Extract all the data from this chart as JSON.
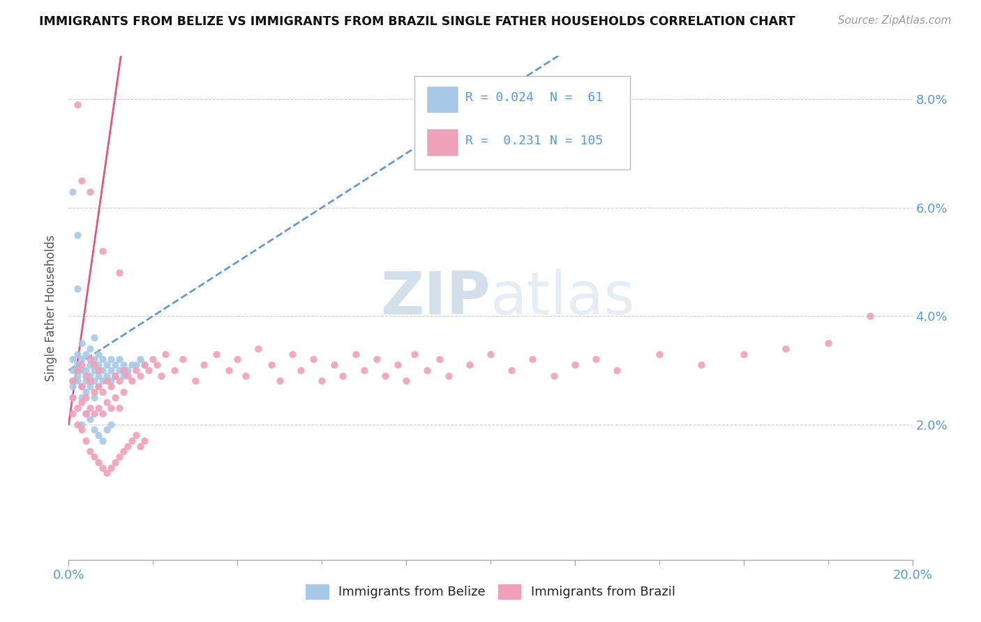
{
  "title": "IMMIGRANTS FROM BELIZE VS IMMIGRANTS FROM BRAZIL SINGLE FATHER HOUSEHOLDS CORRELATION CHART",
  "source": "Source: ZipAtlas.com",
  "ylabel": "Single Father Households",
  "xlim": [
    0.0,
    0.2
  ],
  "ylim": [
    -0.005,
    0.088
  ],
  "yticks": [
    0.02,
    0.04,
    0.06,
    0.08
  ],
  "ytick_labels": [
    "2.0%",
    "4.0%",
    "6.0%",
    "8.0%"
  ],
  "xtick_left_label": "0.0%",
  "xtick_right_label": "20.0%",
  "color_belize": "#a8c8e8",
  "color_brazil": "#f0a0b8",
  "trendline_belize_color": "#6699cc",
  "trendline_brazil_color": "#e05878",
  "grid_color": "#cccccc",
  "axis_label_color": "#5599dd",
  "title_color": "#111111",
  "source_color": "#999999",
  "watermark_color": "#ccd8e8",
  "background": "#ffffff",
  "legend_r1": "R = 0.024",
  "legend_n1": "N =  61",
  "legend_r2": "R =  0.231",
  "legend_n2": "N = 105",
  "belize_label": "Immigrants from Belize",
  "brazil_label": "Immigrants from Brazil",
  "belize_x": [
    0.001,
    0.001,
    0.001,
    0.001,
    0.001,
    0.002,
    0.002,
    0.002,
    0.002,
    0.003,
    0.003,
    0.003,
    0.003,
    0.003,
    0.004,
    0.004,
    0.004,
    0.004,
    0.005,
    0.005,
    0.005,
    0.005,
    0.006,
    0.006,
    0.006,
    0.006,
    0.006,
    0.007,
    0.007,
    0.007,
    0.007,
    0.008,
    0.008,
    0.008,
    0.009,
    0.009,
    0.01,
    0.01,
    0.01,
    0.011,
    0.011,
    0.012,
    0.012,
    0.013,
    0.013,
    0.014,
    0.015,
    0.016,
    0.017,
    0.018,
    0.001,
    0.002,
    0.003,
    0.004,
    0.005,
    0.006,
    0.007,
    0.008,
    0.009,
    0.01,
    0.002
  ],
  "belize_y": [
    0.03,
    0.027,
    0.025,
    0.028,
    0.032,
    0.031,
    0.028,
    0.033,
    0.029,
    0.03,
    0.027,
    0.032,
    0.025,
    0.035,
    0.03,
    0.028,
    0.033,
    0.026,
    0.031,
    0.029,
    0.034,
    0.027,
    0.03,
    0.028,
    0.032,
    0.025,
    0.036,
    0.031,
    0.029,
    0.033,
    0.027,
    0.03,
    0.032,
    0.028,
    0.031,
    0.029,
    0.03,
    0.032,
    0.028,
    0.031,
    0.029,
    0.03,
    0.032,
    0.031,
    0.029,
    0.03,
    0.031,
    0.031,
    0.032,
    0.031,
    0.063,
    0.045,
    0.02,
    0.022,
    0.021,
    0.019,
    0.018,
    0.017,
    0.019,
    0.02,
    0.055
  ],
  "brazil_x": [
    0.001,
    0.001,
    0.001,
    0.002,
    0.002,
    0.002,
    0.003,
    0.003,
    0.003,
    0.004,
    0.004,
    0.004,
    0.005,
    0.005,
    0.005,
    0.006,
    0.006,
    0.006,
    0.007,
    0.007,
    0.007,
    0.008,
    0.008,
    0.009,
    0.009,
    0.01,
    0.01,
    0.011,
    0.011,
    0.012,
    0.012,
    0.013,
    0.013,
    0.014,
    0.015,
    0.016,
    0.017,
    0.018,
    0.019,
    0.02,
    0.021,
    0.022,
    0.023,
    0.025,
    0.027,
    0.03,
    0.032,
    0.035,
    0.038,
    0.04,
    0.042,
    0.045,
    0.048,
    0.05,
    0.053,
    0.055,
    0.058,
    0.06,
    0.063,
    0.065,
    0.068,
    0.07,
    0.073,
    0.075,
    0.078,
    0.08,
    0.082,
    0.085,
    0.088,
    0.09,
    0.095,
    0.1,
    0.105,
    0.11,
    0.115,
    0.12,
    0.125,
    0.13,
    0.14,
    0.15,
    0.16,
    0.17,
    0.18,
    0.19,
    0.003,
    0.004,
    0.005,
    0.006,
    0.007,
    0.008,
    0.009,
    0.01,
    0.011,
    0.012,
    0.013,
    0.014,
    0.015,
    0.016,
    0.017,
    0.018,
    0.002,
    0.003,
    0.005,
    0.008,
    0.012
  ],
  "brazil_y": [
    0.025,
    0.022,
    0.028,
    0.02,
    0.03,
    0.023,
    0.027,
    0.024,
    0.031,
    0.022,
    0.029,
    0.025,
    0.028,
    0.023,
    0.032,
    0.026,
    0.022,
    0.031,
    0.027,
    0.023,
    0.03,
    0.026,
    0.022,
    0.028,
    0.024,
    0.027,
    0.023,
    0.029,
    0.025,
    0.028,
    0.023,
    0.03,
    0.026,
    0.029,
    0.028,
    0.03,
    0.029,
    0.031,
    0.03,
    0.032,
    0.031,
    0.029,
    0.033,
    0.03,
    0.032,
    0.028,
    0.031,
    0.033,
    0.03,
    0.032,
    0.029,
    0.034,
    0.031,
    0.028,
    0.033,
    0.03,
    0.032,
    0.028,
    0.031,
    0.029,
    0.033,
    0.03,
    0.032,
    0.029,
    0.031,
    0.028,
    0.033,
    0.03,
    0.032,
    0.029,
    0.031,
    0.033,
    0.03,
    0.032,
    0.029,
    0.031,
    0.032,
    0.03,
    0.033,
    0.031,
    0.033,
    0.034,
    0.035,
    0.04,
    0.019,
    0.017,
    0.015,
    0.014,
    0.013,
    0.012,
    0.011,
    0.012,
    0.013,
    0.014,
    0.015,
    0.016,
    0.017,
    0.018,
    0.016,
    0.017,
    0.079,
    0.065,
    0.063,
    0.052,
    0.048
  ]
}
